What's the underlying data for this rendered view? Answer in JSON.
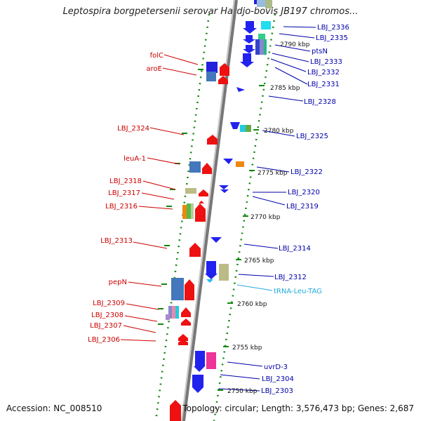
{
  "title": "Leptospira borgpetersenii serovar Hardjo-bovis JB197 chromos...",
  "footer": {
    "accession": "Accession: NC_008510",
    "topology": "Topology: circular; Length: 3,576,473 bp; Genes: 2,687"
  },
  "colors": {
    "left_label": "#cc0000",
    "right_label": "#0000aa",
    "trna_label": "#22aadd",
    "backbone": "#999999",
    "tick": "#118811"
  },
  "ruler": [
    {
      "label": "2790 kbp"
    },
    {
      "label": "2785 kbp"
    },
    {
      "label": "2780 kbp"
    },
    {
      "label": "2775 kbp"
    },
    {
      "label": "2770 kbp"
    },
    {
      "label": "2765 kbp"
    },
    {
      "label": "2760 kbp"
    },
    {
      "label": "2755 kbp"
    },
    {
      "label": "2750 kbp"
    }
  ],
  "left_labels": [
    {
      "name": "folC"
    },
    {
      "name": "aroE"
    },
    {
      "name": "LBJ_2324"
    },
    {
      "name": "leuA-1"
    },
    {
      "name": "LBJ_2318"
    },
    {
      "name": "LBJ_2317"
    },
    {
      "name": "LBJ_2316"
    },
    {
      "name": "LBJ_2313"
    },
    {
      "name": "pepN"
    },
    {
      "name": "LBJ_2309"
    },
    {
      "name": "LBJ_2308"
    },
    {
      "name": "LBJ_2307"
    },
    {
      "name": "LBJ_2306"
    }
  ],
  "right_labels": [
    {
      "name": "LBJ_2336"
    },
    {
      "name": "LBJ_2335"
    },
    {
      "name": "ptsN"
    },
    {
      "name": "LBJ_2333"
    },
    {
      "name": "LBJ_2332"
    },
    {
      "name": "LBJ_2331"
    },
    {
      "name": "LBJ_2328"
    },
    {
      "name": "LBJ_2325"
    },
    {
      "name": "LBJ_2322"
    },
    {
      "name": "LBJ_2320"
    },
    {
      "name": "LBJ_2319"
    },
    {
      "name": "LBJ_2314"
    },
    {
      "name": "LBJ_2312"
    },
    {
      "name": "tRNA-Leu-TAG"
    },
    {
      "name": "uvrD-3"
    },
    {
      "name": "LBJ_2304"
    },
    {
      "name": "LBJ_2303"
    }
  ]
}
